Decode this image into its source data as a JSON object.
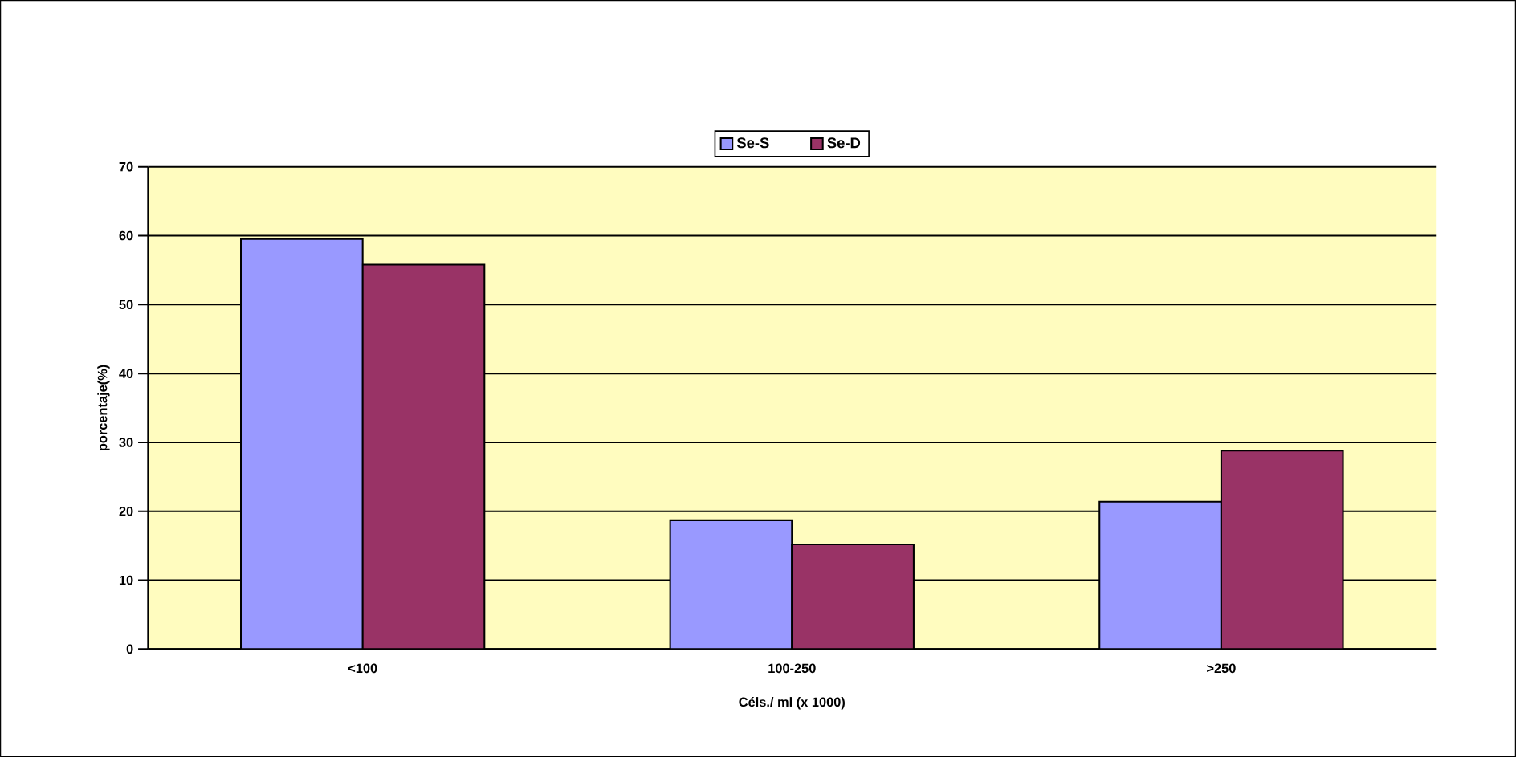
{
  "chart_data": {
    "type": "bar",
    "xlabel": "Céls./ ml (x 1000)",
    "ylabel": "porcentaje(%)",
    "categories": [
      "<100",
      "100-250",
      ">250"
    ],
    "series": [
      {
        "name": "Se-S",
        "color": "#9999ff",
        "values": [
          59.5,
          18.7,
          21.4
        ]
      },
      {
        "name": "Se-D",
        "color": "#993366",
        "values": [
          55.8,
          15.2,
          28.8
        ]
      }
    ],
    "ylim": [
      0,
      70
    ],
    "yticks": [
      0,
      10,
      20,
      30,
      40,
      50,
      60,
      70
    ],
    "grid": "y",
    "legend": "top"
  }
}
